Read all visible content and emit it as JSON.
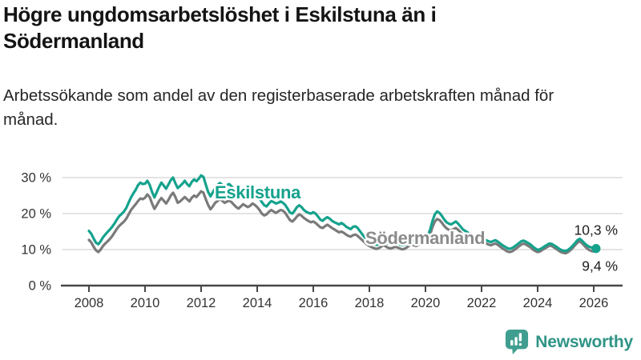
{
  "header": {
    "title": "Högre ungdomsarbetslöshet i Eskilstuna än i Södermanland",
    "subtitle": "Arbetssökande som andel av den registerbaserade arbetskraften månad för månad."
  },
  "branding": {
    "name": "Newsworthy",
    "logo_icon": "bar-chart-speech-bubble-icon",
    "brand_color": "#3f9e8f"
  },
  "colors": {
    "eskilstuna_line": "#15a28d",
    "sodermanland_line": "#7a7a7a",
    "sodermanland_label": "#8b8b8b",
    "gridline": "#dcdcdc",
    "axis": "#474747",
    "tick_text": "#333333",
    "annotation_text": "#1f1f1f"
  },
  "chart_data": {
    "type": "line",
    "title": "Högre ungdomsarbetslöshet i Eskilstuna än i Södermanland",
    "subtitle": "Arbetssökande som andel av den registerbaserade arbetskraften månad för månad.",
    "x_unit": "month",
    "x_range": [
      "2008-01",
      "2026-02"
    ],
    "xlim": [
      2007.1,
      2027.0
    ],
    "ylim": [
      0,
      33
    ],
    "grid": true,
    "legend_position": "inline-labels",
    "x_ticks": [
      2008,
      2010,
      2012,
      2014,
      2016,
      2018,
      2020,
      2022,
      2024,
      2026
    ],
    "y_ticks": [
      {
        "value": 0,
        "label": "0 %"
      },
      {
        "value": 10,
        "label": "10 %"
      },
      {
        "value": 20,
        "label": "20 %"
      },
      {
        "value": 30,
        "label": "30 %"
      }
    ],
    "series": [
      {
        "name": "Eskilstuna",
        "color": "#15a28d",
        "label_color": "#15a28d",
        "end_label": "10,3 %",
        "end_value": 10.3,
        "end_dot": true,
        "values": [
          15.2,
          14.4,
          13.1,
          11.9,
          11.5,
          12.3,
          13.4,
          14.2,
          14.9,
          15.6,
          16.4,
          17.3,
          18.4,
          19.3,
          19.9,
          20.6,
          21.6,
          23.1,
          24.5,
          25.6,
          26.6,
          27.9,
          28.6,
          28.2,
          28.3,
          29.1,
          28.0,
          26.0,
          24.5,
          25.9,
          27.4,
          28.6,
          27.8,
          26.9,
          28.1,
          29.3,
          30.0,
          28.4,
          27.1,
          27.7,
          28.3,
          29.1,
          28.2,
          27.6,
          28.8,
          29.5,
          29.0,
          29.7,
          30.6,
          30.2,
          28.1,
          26.0,
          24.8,
          25.9,
          27.0,
          27.9,
          28.5,
          28.0,
          27.4,
          27.9,
          28.2,
          27.6,
          26.8,
          25.8,
          25.2,
          25.9,
          26.4,
          26.0,
          25.4,
          25.8,
          26.2,
          25.6,
          25.0,
          24.1,
          23.2,
          22.3,
          22.0,
          22.8,
          23.5,
          23.2,
          22.8,
          23.0,
          23.4,
          23.0,
          22.4,
          21.4,
          20.3,
          20.0,
          20.8,
          21.8,
          22.3,
          21.8,
          21.0,
          20.5,
          20.2,
          20.0,
          20.4,
          20.0,
          19.2,
          18.3,
          18.0,
          18.6,
          19.0,
          18.6,
          18.0,
          17.6,
          17.3,
          17.0,
          17.4,
          17.0,
          16.4,
          16.0,
          15.7,
          16.3,
          16.5,
          16.0,
          15.1,
          14.2,
          13.4,
          12.7,
          12.2,
          11.8,
          11.5,
          11.3,
          11.5,
          12.0,
          12.4,
          12.1,
          11.7,
          11.4,
          11.6,
          11.9,
          11.7,
          11.4,
          11.2,
          11.3,
          11.7,
          12.3,
          12.7,
          12.4,
          12.1,
          12.4,
          12.8,
          13.2,
          13.6,
          14.0,
          15.5,
          18.0,
          19.8,
          20.6,
          20.2,
          19.4,
          18.4,
          17.6,
          17.2,
          17.0,
          17.4,
          17.8,
          17.2,
          16.4,
          15.6,
          15.2,
          14.8,
          14.2,
          13.6,
          13.2,
          13.0,
          13.1,
          13.2,
          13.0,
          12.6,
          12.3,
          12.1,
          12.4,
          12.6,
          12.2,
          11.7,
          11.2,
          10.8,
          10.4,
          10.2,
          10.4,
          10.8,
          11.3,
          11.8,
          12.3,
          12.5,
          12.2,
          11.8,
          11.4,
          10.8,
          10.3,
          9.9,
          10.1,
          10.5,
          10.9,
          11.3,
          11.7,
          11.6,
          11.2,
          10.8,
          10.3,
          9.9,
          9.7,
          9.6,
          9.9,
          10.4,
          11.1,
          11.8,
          12.6,
          13.0,
          12.5,
          11.8,
          11.2,
          10.8,
          10.6,
          10.4,
          10.3
        ]
      },
      {
        "name": "Södermanland",
        "color": "#7a7a7a",
        "label_color": "#8b8b8b",
        "end_label": "9,4 %",
        "end_value": 9.4,
        "end_dot": false,
        "values": [
          12.7,
          12.0,
          10.8,
          9.8,
          9.3,
          10.0,
          11.0,
          11.7,
          12.3,
          13.0,
          13.8,
          14.8,
          15.8,
          16.6,
          17.2,
          17.8,
          18.6,
          19.8,
          21.0,
          21.8,
          22.6,
          23.5,
          24.2,
          24.0,
          24.4,
          25.3,
          24.6,
          22.8,
          21.3,
          22.3,
          23.5,
          24.3,
          23.6,
          22.8,
          23.8,
          25.0,
          25.8,
          24.6,
          23.0,
          23.4,
          24.0,
          24.6,
          24.0,
          23.4,
          24.4,
          25.0,
          24.6,
          25.4,
          26.2,
          25.8,
          24.0,
          22.4,
          21.2,
          22.0,
          23.0,
          23.5,
          24.0,
          23.6,
          23.0,
          23.3,
          23.6,
          23.2,
          22.5,
          21.8,
          21.4,
          22.0,
          22.6,
          22.2,
          21.8,
          22.2,
          22.8,
          22.4,
          21.8,
          21.0,
          20.0,
          19.5,
          19.8,
          20.5,
          21.0,
          20.6,
          20.2,
          20.6,
          21.0,
          20.8,
          20.2,
          19.2,
          18.2,
          17.8,
          18.4,
          19.2,
          19.8,
          19.4,
          18.8,
          18.3,
          17.9,
          17.6,
          17.8,
          17.4,
          16.8,
          16.2,
          16.0,
          16.5,
          16.9,
          16.5,
          16.0,
          15.6,
          15.2,
          14.8,
          15.0,
          14.7,
          14.2,
          13.8,
          13.6,
          14.0,
          14.2,
          13.8,
          13.2,
          12.6,
          12.0,
          11.4,
          11.0,
          10.7,
          10.4,
          10.2,
          10.4,
          10.8,
          11.2,
          10.9,
          10.5,
          10.3,
          10.5,
          10.8,
          10.6,
          10.3,
          10.1,
          10.2,
          10.6,
          11.1,
          11.5,
          11.2,
          11.0,
          11.3,
          11.7,
          12.1,
          12.5,
          12.9,
          14.2,
          16.3,
          17.8,
          18.5,
          18.2,
          17.5,
          16.6,
          15.9,
          15.5,
          15.4,
          15.7,
          16.0,
          15.5,
          14.8,
          14.1,
          13.8,
          13.4,
          12.9,
          12.4,
          12.1,
          11.9,
          12.0,
          12.2,
          12.0,
          11.7,
          11.4,
          11.2,
          11.5,
          11.7,
          11.3,
          10.8,
          10.3,
          9.9,
          9.5,
          9.3,
          9.5,
          9.9,
          10.4,
          10.9,
          11.4,
          11.7,
          11.4,
          11.0,
          10.6,
          10.0,
          9.6,
          9.3,
          9.5,
          9.9,
          10.3,
          10.7,
          11.1,
          11.0,
          10.6,
          10.2,
          9.7,
          9.3,
          9.1,
          9.0,
          9.3,
          9.8,
          10.5,
          11.2,
          11.9,
          12.3,
          11.8,
          11.1,
          10.4,
          9.9,
          9.6,
          9.5,
          9.4
        ]
      }
    ]
  }
}
